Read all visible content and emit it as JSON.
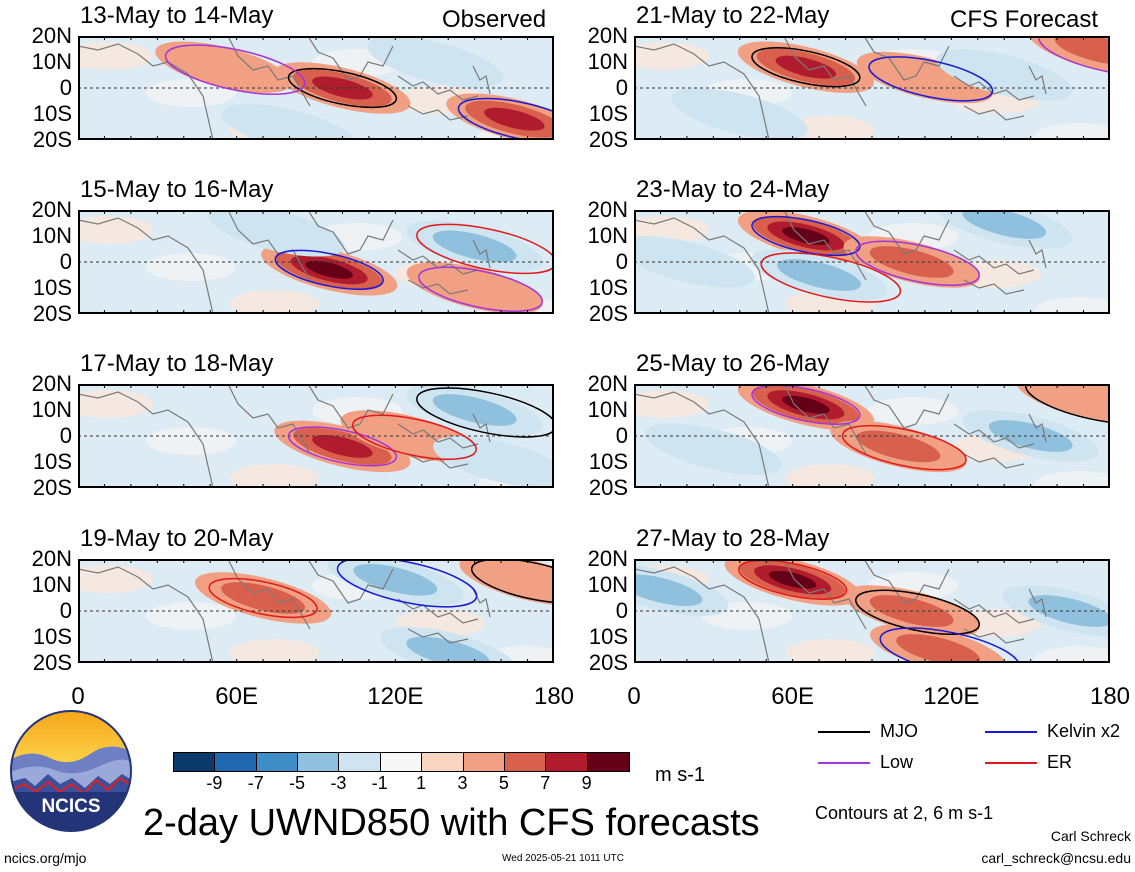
{
  "header": {
    "left_corner": "Observed",
    "right_corner": "CFS Forecast"
  },
  "lat_ticks": [
    "20N",
    "10N",
    "0",
    "10S",
    "20S"
  ],
  "lon_ticks": [
    "0",
    "60E",
    "120E",
    "180"
  ],
  "chart_data": [
    {
      "type": "heatmap",
      "title": "13-May to 14-May",
      "variable": "850-hPa zonal wind anomaly",
      "xlim": [
        0,
        180
      ],
      "ylim": [
        -20,
        20
      ],
      "features": [
        {
          "kind": "westerly",
          "lon": 100,
          "lat": 0,
          "value": 7
        },
        {
          "kind": "westerly",
          "lon": 165,
          "lat": -12,
          "value": 7
        },
        {
          "kind": "westerly",
          "lon": 55,
          "lat": 8,
          "value": 3
        },
        {
          "kind": "easterly",
          "lon": 135,
          "lat": 10,
          "value": -3
        },
        {
          "kind": "easterly",
          "lon": 80,
          "lat": -16,
          "value": -3
        }
      ]
    },
    {
      "type": "heatmap",
      "title": "15-May to 16-May",
      "variable": "850-hPa zonal wind anomaly",
      "xlim": [
        0,
        180
      ],
      "ylim": [
        -20,
        20
      ],
      "features": [
        {
          "kind": "westerly",
          "lon": 95,
          "lat": -3,
          "value": 9
        },
        {
          "kind": "westerly",
          "lon": 150,
          "lat": -10,
          "value": 3
        },
        {
          "kind": "easterly",
          "lon": 150,
          "lat": 6,
          "value": -5
        },
        {
          "kind": "easterly",
          "lon": 75,
          "lat": 12,
          "value": -3
        }
      ]
    },
    {
      "type": "heatmap",
      "title": "17-May to 18-May",
      "variable": "850-hPa zonal wind anomaly",
      "xlim": [
        0,
        180
      ],
      "ylim": [
        -20,
        20
      ],
      "features": [
        {
          "kind": "westerly",
          "lon": 100,
          "lat": -4,
          "value": 7
        },
        {
          "kind": "westerly",
          "lon": 125,
          "lat": 0,
          "value": 3
        },
        {
          "kind": "easterly",
          "lon": 150,
          "lat": 10,
          "value": -5
        },
        {
          "kind": "easterly",
          "lon": 160,
          "lat": -10,
          "value": -3
        }
      ]
    },
    {
      "type": "heatmap",
      "title": "19-May to 20-May",
      "variable": "850-hPa zonal wind anomaly",
      "xlim": [
        0,
        180
      ],
      "ylim": [
        -20,
        20
      ],
      "features": [
        {
          "kind": "westerly",
          "lon": 70,
          "lat": 5,
          "value": 5
        },
        {
          "kind": "westerly",
          "lon": 170,
          "lat": 12,
          "value": 3
        },
        {
          "kind": "easterly",
          "lon": 120,
          "lat": 12,
          "value": -5
        },
        {
          "kind": "easterly",
          "lon": 140,
          "lat": -16,
          "value": -5
        }
      ]
    },
    {
      "type": "heatmap",
      "title": "21-May to 22-May",
      "variable": "850-hPa zonal wind anomaly",
      "xlim": [
        0,
        180
      ],
      "ylim": [
        -20,
        20
      ],
      "features": [
        {
          "kind": "westerly",
          "lon": 65,
          "lat": 8,
          "value": 7
        },
        {
          "kind": "westerly",
          "lon": 110,
          "lat": 4,
          "value": 3
        },
        {
          "kind": "westerly",
          "lon": 175,
          "lat": 15,
          "value": 5
        },
        {
          "kind": "easterly",
          "lon": 140,
          "lat": 5,
          "value": -3
        },
        {
          "kind": "easterly",
          "lon": 40,
          "lat": -10,
          "value": -3
        }
      ]
    },
    {
      "type": "heatmap",
      "title": "23-May to 24-May",
      "variable": "850-hPa zonal wind anomaly",
      "xlim": [
        0,
        180
      ],
      "ylim": [
        -20,
        20
      ],
      "features": [
        {
          "kind": "westerly",
          "lon": 65,
          "lat": 10,
          "value": 9
        },
        {
          "kind": "westerly",
          "lon": 105,
          "lat": 0,
          "value": 5
        },
        {
          "kind": "easterly",
          "lon": 70,
          "lat": -5,
          "value": -5
        },
        {
          "kind": "easterly",
          "lon": 140,
          "lat": 15,
          "value": -5
        },
        {
          "kind": "easterly",
          "lon": 20,
          "lat": 0,
          "value": -3
        }
      ]
    },
    {
      "type": "heatmap",
      "title": "25-May to 26-May",
      "variable": "850-hPa zonal wind anomaly",
      "xlim": [
        0,
        180
      ],
      "ylim": [
        -20,
        20
      ],
      "features": [
        {
          "kind": "westerly",
          "lon": 65,
          "lat": 12,
          "value": 9
        },
        {
          "kind": "westerly",
          "lon": 100,
          "lat": -4,
          "value": 5
        },
        {
          "kind": "westerly",
          "lon": 170,
          "lat": 15,
          "value": 3
        },
        {
          "kind": "easterly",
          "lon": 150,
          "lat": 0,
          "value": -5
        },
        {
          "kind": "easterly",
          "lon": 30,
          "lat": -5,
          "value": -3
        }
      ]
    },
    {
      "type": "heatmap",
      "title": "27-May to 28-May",
      "variable": "850-hPa zonal wind anomaly",
      "xlim": [
        0,
        180
      ],
      "ylim": [
        -20,
        20
      ],
      "features": [
        {
          "kind": "westerly",
          "lon": 60,
          "lat": 12,
          "value": 9
        },
        {
          "kind": "westerly",
          "lon": 105,
          "lat": 0,
          "value": 5
        },
        {
          "kind": "westerly",
          "lon": 115,
          "lat": -15,
          "value": 5
        },
        {
          "kind": "easterly",
          "lon": 165,
          "lat": 0,
          "value": -5
        },
        {
          "kind": "easterly",
          "lon": 10,
          "lat": 8,
          "value": -5
        }
      ]
    }
  ],
  "colorbar": {
    "ticks": [
      "-9",
      "-7",
      "-5",
      "-3",
      "-1",
      "1",
      "3",
      "5",
      "7",
      "9"
    ],
    "colors": [
      "#0b3a6a",
      "#1f68b0",
      "#3f8ec8",
      "#8fc0dd",
      "#cfe4f1",
      "#f7f7f7",
      "#f8d5c3",
      "#f1a083",
      "#d9604d",
      "#b01b2e",
      "#650018"
    ],
    "units": "m s-1"
  },
  "legend": {
    "items": [
      {
        "label": "MJO",
        "color": "#000000"
      },
      {
        "label": "Kelvin x2",
        "color": "#1a1ad6"
      },
      {
        "label": "Low",
        "color": "#a436d8"
      },
      {
        "label": "ER",
        "color": "#e01a1a"
      }
    ],
    "contour_note": "Contours at 2, 6 m s-1"
  },
  "footer": {
    "title": "2-day UWND850 with CFS forecasts",
    "logo_text": "NCICS",
    "url": "ncics.org/mjo",
    "timestamp": "Wed 2025-05-21 1011 UTC",
    "author": "Carl Schreck",
    "email": "carl_schreck@ncsu.edu"
  }
}
